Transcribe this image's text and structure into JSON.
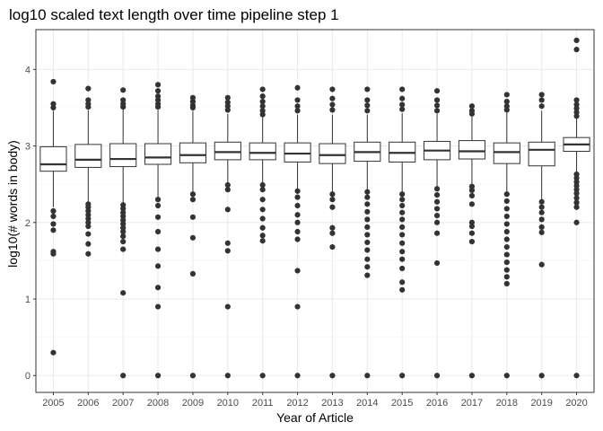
{
  "chart_data": {
    "type": "boxplot",
    "title": "log10 scaled text length over time pipeline step 1",
    "xlabel": "Year of Article",
    "ylabel": "log10(# words in body)",
    "categories": [
      "2005",
      "2006",
      "2007",
      "2008",
      "2009",
      "2010",
      "2011",
      "2012",
      "2013",
      "2014",
      "2015",
      "2016",
      "2017",
      "2018",
      "2019",
      "2020"
    ],
    "y_ticks": [
      0,
      1,
      2,
      3,
      4
    ],
    "ylim": [
      -0.22,
      4.52
    ],
    "grid": true,
    "theme": "bw",
    "colors": {
      "box_fill": "#ffffff",
      "box_stroke": "#333333",
      "grid_major": "#ebebeb",
      "grid_minor": "#f5f5f5",
      "panel_border": "#333333"
    },
    "boxes": [
      {
        "year": "2005",
        "q1": 2.67,
        "median": 2.76,
        "q3": 2.99,
        "whisker_low": 2.2,
        "whisker_high": 3.46,
        "outliers": [
          3.84,
          3.55,
          3.5,
          2.15,
          2.08,
          1.98,
          1.9,
          1.62,
          1.59,
          0.3
        ]
      },
      {
        "year": "2006",
        "q1": 2.72,
        "median": 2.82,
        "q3": 3.02,
        "whisker_low": 2.27,
        "whisker_high": 3.47,
        "outliers": [
          3.75,
          3.6,
          3.55,
          3.51,
          2.24,
          2.2,
          2.15,
          2.1,
          2.05,
          2.0,
          1.95,
          1.85,
          1.72,
          1.59
        ]
      },
      {
        "year": "2007",
        "q1": 2.73,
        "median": 2.83,
        "q3": 3.03,
        "whisker_low": 2.26,
        "whisker_high": 3.48,
        "outliers": [
          3.73,
          3.6,
          3.55,
          3.51,
          2.23,
          2.18,
          2.13,
          2.08,
          2.03,
          1.98,
          1.93,
          1.88,
          1.82,
          1.75,
          1.65,
          1.08,
          0.0
        ]
      },
      {
        "year": "2008",
        "q1": 2.76,
        "median": 2.85,
        "q3": 3.03,
        "whisker_low": 2.33,
        "whisker_high": 3.47,
        "outliers": [
          3.8,
          3.72,
          3.65,
          3.6,
          3.55,
          3.51,
          2.3,
          2.22,
          2.07,
          1.88,
          1.65,
          1.43,
          1.15,
          0.9,
          0.0
        ]
      },
      {
        "year": "2009",
        "q1": 2.78,
        "median": 2.88,
        "q3": 3.04,
        "whisker_low": 2.4,
        "whisker_high": 3.46,
        "outliers": [
          3.63,
          3.58,
          3.53,
          3.5,
          2.37,
          2.3,
          2.07,
          1.8,
          1.33,
          0.0
        ]
      },
      {
        "year": "2010",
        "q1": 2.82,
        "median": 2.92,
        "q3": 3.05,
        "whisker_low": 2.52,
        "whisker_high": 3.42,
        "outliers": [
          3.63,
          3.57,
          3.52,
          3.47,
          2.49,
          2.43,
          2.17,
          1.73,
          1.63,
          0.9,
          0.0
        ]
      },
      {
        "year": "2011",
        "q1": 2.82,
        "median": 2.91,
        "q3": 3.04,
        "whisker_low": 2.52,
        "whisker_high": 3.38,
        "outliers": [
          3.74,
          3.65,
          3.58,
          3.52,
          3.46,
          3.41,
          2.49,
          2.43,
          2.3,
          2.17,
          2.05,
          1.93,
          1.83,
          1.76,
          0.0
        ]
      },
      {
        "year": "2012",
        "q1": 2.79,
        "median": 2.9,
        "q3": 3.04,
        "whisker_low": 2.44,
        "whisker_high": 3.41,
        "outliers": [
          3.76,
          3.6,
          3.52,
          3.46,
          2.41,
          2.33,
          2.22,
          2.1,
          2.0,
          1.88,
          1.78,
          1.37,
          0.9,
          0.0
        ]
      },
      {
        "year": "2013",
        "q1": 2.77,
        "median": 2.88,
        "q3": 3.03,
        "whisker_low": 2.4,
        "whisker_high": 3.41,
        "outliers": [
          3.74,
          3.62,
          3.54,
          3.47,
          2.37,
          2.3,
          2.2,
          1.93,
          1.86,
          1.68,
          0.0
        ]
      },
      {
        "year": "2014",
        "q1": 2.8,
        "median": 2.92,
        "q3": 3.05,
        "whisker_low": 2.43,
        "whisker_high": 3.41,
        "outliers": [
          3.74,
          3.6,
          3.53,
          3.46,
          2.4,
          2.33,
          2.24,
          2.14,
          2.04,
          1.94,
          1.84,
          1.74,
          1.64,
          1.52,
          1.42,
          1.31,
          0.0
        ]
      },
      {
        "year": "2015",
        "q1": 2.79,
        "median": 2.91,
        "q3": 3.05,
        "whisker_low": 2.4,
        "whisker_high": 3.43,
        "outliers": [
          3.74,
          3.62,
          3.54,
          3.48,
          2.37,
          2.3,
          2.22,
          2.13,
          2.04,
          1.94,
          1.84,
          1.73,
          1.62,
          1.52,
          1.4,
          1.22,
          1.12,
          0.0
        ]
      },
      {
        "year": "2016",
        "q1": 2.82,
        "median": 2.94,
        "q3": 3.06,
        "whisker_low": 2.47,
        "whisker_high": 3.42,
        "outliers": [
          3.72,
          3.6,
          3.53,
          3.46,
          2.44,
          2.36,
          2.27,
          2.18,
          2.09,
          2.0,
          1.86,
          1.47,
          0.0
        ]
      },
      {
        "year": "2017",
        "q1": 2.83,
        "median": 2.93,
        "q3": 3.07,
        "whisker_low": 2.5,
        "whisker_high": 3.39,
        "outliers": [
          3.52,
          3.46,
          3.42,
          2.47,
          2.42,
          2.35,
          2.24,
          2.0,
          1.95,
          1.86,
          1.75,
          0.0
        ]
      },
      {
        "year": "2018",
        "q1": 2.77,
        "median": 2.92,
        "q3": 3.04,
        "whisker_low": 2.4,
        "whisker_high": 3.43,
        "outliers": [
          3.67,
          3.58,
          3.52,
          3.47,
          2.37,
          2.28,
          2.18,
          2.08,
          1.98,
          1.88,
          1.78,
          1.68,
          1.58,
          1.48,
          1.38,
          1.29,
          1.2,
          0.0
        ]
      },
      {
        "year": "2019",
        "q1": 2.74,
        "median": 2.95,
        "q3": 3.05,
        "whisker_low": 2.3,
        "whisker_high": 3.46,
        "outliers": [
          3.67,
          3.6,
          3.52,
          2.27,
          2.2,
          2.13,
          2.04,
          1.94,
          1.87,
          1.45,
          0.0
        ]
      },
      {
        "year": "2020",
        "q1": 2.93,
        "median": 3.02,
        "q3": 3.11,
        "whisker_low": 2.66,
        "whisker_high": 3.36,
        "outliers": [
          4.38,
          4.26,
          3.6,
          3.54,
          3.49,
          3.44,
          3.39,
          2.63,
          2.58,
          2.53,
          2.48,
          2.43,
          2.38,
          2.32,
          2.26,
          2.2,
          2.0,
          0.0
        ]
      }
    ]
  }
}
